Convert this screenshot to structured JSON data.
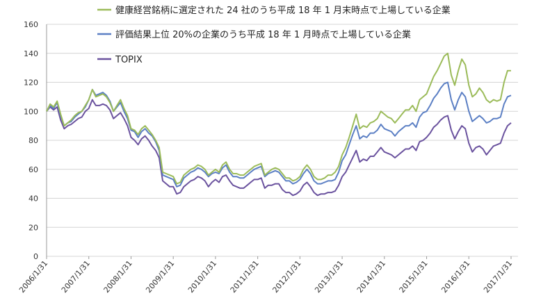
{
  "chart_data": {
    "type": "line",
    "title": "",
    "xlabel": "",
    "ylabel": "",
    "ylim": [
      0,
      160
    ],
    "yticks": [
      "0",
      "20",
      "40",
      "60",
      "80",
      "100",
      "120",
      "140",
      "160"
    ],
    "xtick_labels": [
      "2006/1/31",
      "2007/1/31",
      "2008/1/31",
      "2009/1/31",
      "2010/1/31",
      "2011/1/31",
      "2012/1/31",
      "2013/1/31",
      "2014/1/31",
      "2015/1/31",
      "2016/1/31",
      "2017/1/31"
    ],
    "x_start": "2006/1/31",
    "x_end": "2017/1/31",
    "x_frequency": "monthly",
    "grid": true,
    "legend_position": "top",
    "series": [
      {
        "name": "健康経営銘柄に選定された 24 社のうち平成 18 年 1 月末時点で上場している企業",
        "color": "#9bbb59",
        "values": [
          100,
          105,
          103,
          107,
          98,
          90,
          92,
          94,
          97,
          99,
          100,
          104,
          108,
          115,
          110,
          111,
          112,
          110,
          106,
          100,
          104,
          108,
          102,
          97,
          88,
          87,
          84,
          88,
          90,
          87,
          84,
          80,
          75,
          58,
          57,
          56,
          55,
          50,
          51,
          56,
          58,
          60,
          61,
          63,
          62,
          60,
          56,
          58,
          60,
          58,
          63,
          65,
          60,
          57,
          57,
          56,
          56,
          58,
          60,
          62,
          63,
          64,
          56,
          58,
          60,
          61,
          60,
          57,
          54,
          54,
          52,
          53,
          55,
          60,
          63,
          60,
          55,
          53,
          53,
          54,
          56,
          56,
          58,
          62,
          70,
          75,
          82,
          90,
          98,
          88,
          90,
          89,
          92,
          93,
          95,
          100,
          98,
          96,
          95,
          92,
          95,
          98,
          101,
          101,
          104,
          100,
          108,
          110,
          112,
          118,
          124,
          128,
          133,
          138,
          140,
          125,
          118,
          128,
          136,
          132,
          118,
          110,
          112,
          116,
          113,
          108,
          106,
          108,
          107,
          108,
          120,
          128,
          128
        ]
      },
      {
        "name": "評価結果上位 20%の企業のうち平成 18 年 1 月時点で上場している企業",
        "color": "#5b7fc4",
        "values": [
          100,
          104,
          102,
          106,
          97,
          90,
          92,
          93,
          96,
          98,
          100,
          103,
          108,
          115,
          111,
          112,
          113,
          111,
          107,
          100,
          103,
          106,
          100,
          95,
          87,
          86,
          82,
          86,
          88,
          85,
          83,
          79,
          73,
          56,
          55,
          54,
          53,
          48,
          49,
          54,
          56,
          58,
          59,
          61,
          60,
          58,
          55,
          57,
          58,
          57,
          61,
          63,
          58,
          55,
          55,
          54,
          54,
          56,
          58,
          60,
          61,
          62,
          55,
          57,
          58,
          59,
          58,
          55,
          52,
          52,
          50,
          51,
          53,
          57,
          60,
          57,
          52,
          50,
          50,
          51,
          52,
          52,
          53,
          58,
          66,
          70,
          77,
          84,
          90,
          81,
          83,
          82,
          85,
          85,
          87,
          91,
          88,
          87,
          86,
          83,
          86,
          88,
          90,
          90,
          92,
          89,
          96,
          99,
          100,
          104,
          109,
          112,
          116,
          119,
          120,
          108,
          101,
          108,
          113,
          110,
          100,
          93,
          95,
          97,
          95,
          92,
          93,
          95,
          95,
          96,
          105,
          110,
          111
        ]
      },
      {
        "name": "TOPIX",
        "color": "#6a529e",
        "values": [
          100,
          103,
          101,
          103,
          94,
          88,
          90,
          91,
          93,
          95,
          96,
          100,
          102,
          108,
          104,
          104,
          105,
          104,
          101,
          95,
          97,
          99,
          95,
          90,
          82,
          80,
          77,
          81,
          83,
          80,
          76,
          73,
          68,
          52,
          50,
          48,
          48,
          43,
          44,
          48,
          50,
          52,
          53,
          55,
          54,
          52,
          48,
          51,
          53,
          51,
          55,
          56,
          52,
          49,
          48,
          47,
          47,
          49,
          51,
          53,
          53,
          54,
          47,
          49,
          49,
          50,
          50,
          46,
          44,
          44,
          42,
          43,
          45,
          49,
          51,
          48,
          44,
          42,
          43,
          43,
          44,
          44,
          45,
          49,
          55,
          58,
          63,
          68,
          73,
          65,
          67,
          66,
          69,
          69,
          72,
          75,
          72,
          71,
          70,
          68,
          70,
          72,
          74,
          74,
          76,
          73,
          79,
          80,
          82,
          85,
          89,
          91,
          94,
          96,
          97,
          87,
          81,
          86,
          90,
          88,
          78,
          72,
          75,
          76,
          74,
          70,
          73,
          76,
          77,
          78,
          85,
          90,
          92
        ]
      }
    ]
  }
}
